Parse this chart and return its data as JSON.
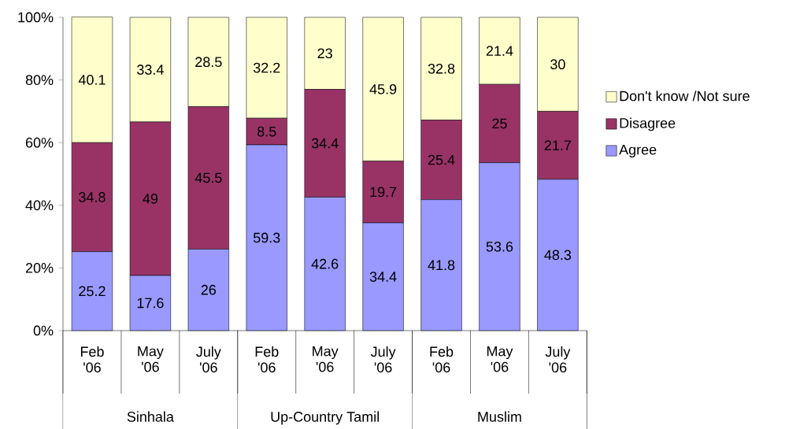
{
  "chart_data": {
    "type": "bar",
    "stacked": true,
    "categories": [
      "Feb '06",
      "May '06",
      "July '06",
      "Feb '06",
      "May '06",
      "July '06",
      "Feb '06",
      "May '06",
      "July '06"
    ],
    "series": [
      {
        "name": "Agree",
        "color": "#9999ff",
        "values": [
          25.2,
          17.6,
          26,
          59.3,
          42.6,
          34.4,
          41.8,
          53.6,
          48.3
        ]
      },
      {
        "name": "Disagree",
        "color": "#993366",
        "values": [
          34.8,
          49,
          45.5,
          8.5,
          34.4,
          19.7,
          25.4,
          25,
          21.7
        ]
      },
      {
        "name": "Don't know /Not sure",
        "color": "#ffffcc",
        "values": [
          40.1,
          33.4,
          28.5,
          32.2,
          23,
          45.9,
          32.8,
          21.4,
          30
        ]
      }
    ],
    "ylim": [
      0,
      100
    ],
    "yticks": [
      {
        "value": 0,
        "label": "0%"
      },
      {
        "value": 20,
        "label": "20%"
      },
      {
        "value": 40,
        "label": "40%"
      },
      {
        "value": 60,
        "label": "60%"
      },
      {
        "value": 80,
        "label": "80%"
      },
      {
        "value": 100,
        "label": "100%"
      }
    ],
    "annotations": [
      "Sinhala",
      "Up-Country Tamil",
      "Muslim"
    ],
    "data_labels": true,
    "legend": "right"
  }
}
